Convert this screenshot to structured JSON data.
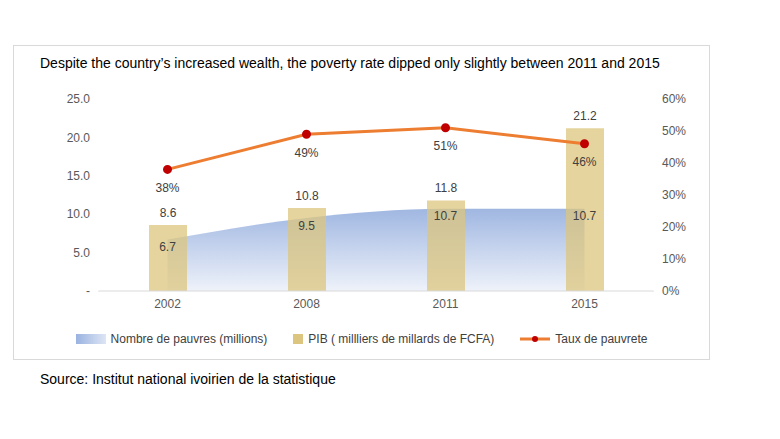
{
  "chart_data": {
    "type": "composed",
    "title": "Despite the country’s increased wealth, the poverty rate dipped only slightly between 2011 and 2015",
    "source": "Source: Institut national ivoirien de la statistique",
    "categories": [
      "2002",
      "2008",
      "2011",
      "2015"
    ],
    "series": [
      {
        "name": "Nombre de pauvres (millions)",
        "type": "area",
        "color": "#8faadc",
        "values": [
          6.7,
          9.5,
          10.7,
          10.7
        ]
      },
      {
        "name": "PIB ( millliers de millards de FCFA)",
        "type": "bar",
        "color": "#dcc57e",
        "values": [
          8.6,
          10.8,
          11.8,
          21.2
        ]
      },
      {
        "name": "Taux de pauvrete",
        "type": "line",
        "axis": "y2",
        "color": "#ed7d31",
        "marker": "circle",
        "values": [
          38,
          49,
          51,
          46
        ],
        "value_labels": [
          "38%",
          "49%",
          "51%",
          "46%"
        ]
      }
    ],
    "ylim": [
      0,
      25
    ],
    "yticks": [
      {
        "value": 0,
        "label": "-"
      },
      {
        "value": 5,
        "label": "5.0"
      },
      {
        "value": 10,
        "label": "10.0"
      },
      {
        "value": 15,
        "label": "15.0"
      },
      {
        "value": 20,
        "label": "20.0"
      },
      {
        "value": 25,
        "label": "25.0"
      }
    ],
    "y2lim": [
      0,
      60
    ],
    "y2ticks": [
      {
        "value": 0,
        "label": "0%"
      },
      {
        "value": 10,
        "label": "10%"
      },
      {
        "value": 20,
        "label": "20%"
      },
      {
        "value": 30,
        "label": "30%"
      },
      {
        "value": 40,
        "label": "40%"
      },
      {
        "value": 50,
        "label": "50%"
      },
      {
        "value": 60,
        "label": "60%"
      }
    ],
    "data_labels": true,
    "grid": false,
    "legend": "bottom"
  }
}
